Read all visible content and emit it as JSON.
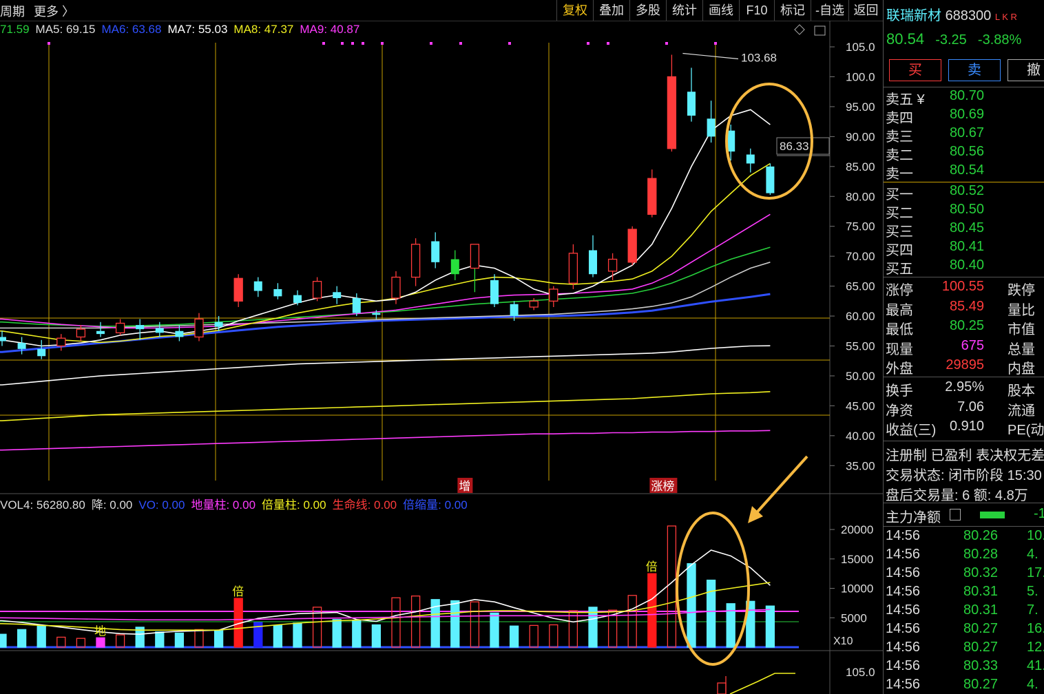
{
  "toolbar": {
    "period_label": "周期",
    "more_label": "更多 〉",
    "buttons": [
      "复权",
      "叠加",
      "多股",
      "统计",
      "画线",
      "F10",
      "标记",
      "-自选",
      "返回"
    ],
    "active_index": 0
  },
  "ma_legend": [
    {
      "text": "71.59",
      "color": "#27d03c"
    },
    {
      "text": "MA5: 69.15",
      "color": "#dddddd"
    },
    {
      "text": "MA6: 63.68",
      "color": "#2f50ff"
    },
    {
      "text": "MA7: 55.03",
      "color": "#ffffff"
    },
    {
      "text": "MA8: 47.37",
      "color": "#f0f020"
    },
    {
      "text": "MA9: 40.87",
      "color": "#ff3bff"
    }
  ],
  "vol_legend": [
    {
      "text": "VOL4: 56280.80",
      "color": "#dddddd"
    },
    {
      "text": "降: 0.00",
      "color": "#dddddd"
    },
    {
      "text": "VO: 0.00",
      "color": "#2f50ff"
    },
    {
      "text": "地量柱: 0.00",
      "color": "#ff3bff"
    },
    {
      "text": "倍量柱: 0.00",
      "color": "#f0f020"
    },
    {
      "text": "生命线: 0.00",
      "color": "#ff3b3b"
    },
    {
      "text": "倍缩量: 0.00",
      "color": "#2f50ff"
    }
  ],
  "chart_data": {
    "type": "candlestick",
    "price_axis_ticks": [
      105,
      100,
      95,
      90,
      85,
      80,
      75,
      70,
      65,
      60,
      55,
      50,
      45,
      40,
      35
    ],
    "price_axis_labels": [
      "105.0",
      "100.0",
      "95.00",
      "90.00",
      "85.00",
      "80.00",
      "75.00",
      "70.00",
      "65.00",
      "60.00",
      "55.00",
      "50.00",
      "45.00",
      "40.00",
      "35.00"
    ],
    "ylim": [
      32.5,
      106.5
    ],
    "vol_axis_labels": [
      "20000",
      "15000",
      "10000",
      "5000"
    ],
    "vol_axis_ticks": [
      20000,
      15000,
      10000,
      5000
    ],
    "vol_ylim": [
      0,
      22000
    ],
    "vol_multiplier_label": "X10",
    "lower_axis_label": "105.0",
    "high_annotation": "103.68",
    "cross_price_label": "86.33",
    "event_labels": [
      {
        "index": 24,
        "text": "增"
      },
      {
        "index": 34,
        "text": "涨榜"
      }
    ],
    "vol_marks": [
      {
        "index": 12,
        "text": "倍"
      },
      {
        "index": 33,
        "text": "倍"
      },
      {
        "index": 5,
        "text": "地"
      }
    ],
    "candles": [
      {
        "o": 56.5,
        "h": 57.5,
        "l": 55.0,
        "c": 55.8,
        "v": 2200
      },
      {
        "o": 55.5,
        "h": 56.5,
        "l": 53.6,
        "c": 54.5,
        "v": 3000
      },
      {
        "o": 54.5,
        "h": 56.0,
        "l": 52.8,
        "c": 53.3,
        "v": 3600
      },
      {
        "o": 55.0,
        "h": 57.0,
        "l": 54.2,
        "c": 56.3,
        "v": 1700
      },
      {
        "o": 56.5,
        "h": 58.5,
        "l": 55.8,
        "c": 57.8,
        "v": 1500
      },
      {
        "o": 57.5,
        "h": 59.0,
        "l": 56.5,
        "c": 57.0,
        "v": 1600
      },
      {
        "o": 57.2,
        "h": 59.5,
        "l": 56.8,
        "c": 58.8,
        "v": 2100
      },
      {
        "o": 58.5,
        "h": 59.5,
        "l": 56.0,
        "c": 57.8,
        "v": 3400
      },
      {
        "o": 58.0,
        "h": 59.0,
        "l": 56.5,
        "c": 57.2,
        "v": 2600
      },
      {
        "o": 57.5,
        "h": 58.5,
        "l": 55.8,
        "c": 56.5,
        "v": 2400
      },
      {
        "o": 56.5,
        "h": 60.5,
        "l": 55.8,
        "c": 59.5,
        "v": 3000
      },
      {
        "o": 59.0,
        "h": 60.0,
        "l": 57.5,
        "c": 58.2,
        "v": 2800
      },
      {
        "o": 62.5,
        "h": 67.0,
        "l": 61.5,
        "c": 66.3,
        "v": 8300
      },
      {
        "o": 65.8,
        "h": 66.5,
        "l": 63.2,
        "c": 64.2,
        "v": 4200
      },
      {
        "o": 64.5,
        "h": 65.5,
        "l": 62.8,
        "c": 63.3,
        "v": 3700
      },
      {
        "o": 63.5,
        "h": 64.3,
        "l": 61.8,
        "c": 62.2,
        "v": 4100
      },
      {
        "o": 63.0,
        "h": 66.5,
        "l": 62.5,
        "c": 65.8,
        "v": 6800
      },
      {
        "o": 64.0,
        "h": 65.0,
        "l": 62.0,
        "c": 63.0,
        "v": 4700
      },
      {
        "o": 63.0,
        "h": 63.8,
        "l": 60.0,
        "c": 60.5,
        "v": 4500
      },
      {
        "o": 60.5,
        "h": 61.0,
        "l": 59.5,
        "c": 60.2,
        "v": 3800
      },
      {
        "o": 63.0,
        "h": 67.5,
        "l": 62.0,
        "c": 66.5,
        "v": 8400
      },
      {
        "o": 66.5,
        "h": 73.0,
        "l": 65.0,
        "c": 72.0,
        "v": 8700
      },
      {
        "o": 72.5,
        "h": 74.0,
        "l": 68.0,
        "c": 69.0,
        "v": 8100
      },
      {
        "o": 69.5,
        "h": 71.0,
        "l": 66.0,
        "c": 67.0,
        "v": 7900
      },
      {
        "o": 68.0,
        "h": 72.0,
        "l": 64.0,
        "c": 72.0,
        "v": 7700
      },
      {
        "o": 66.0,
        "h": 67.0,
        "l": 61.5,
        "c": 62.0,
        "v": 5800
      },
      {
        "o": 62.0,
        "h": 62.5,
        "l": 59.2,
        "c": 60.0,
        "v": 3600
      },
      {
        "o": 61.5,
        "h": 63.0,
        "l": 61.0,
        "c": 62.5,
        "v": 3700
      },
      {
        "o": 62.5,
        "h": 65.0,
        "l": 61.5,
        "c": 64.5,
        "v": 3800
      },
      {
        "o": 65.5,
        "h": 72.0,
        "l": 64.5,
        "c": 70.5,
        "v": 6200
      },
      {
        "o": 71.0,
        "h": 73.5,
        "l": 66.5,
        "c": 67.0,
        "v": 6800
      },
      {
        "o": 67.5,
        "h": 70.5,
        "l": 66.0,
        "c": 69.5,
        "v": 6300
      },
      {
        "o": 69.0,
        "h": 75.0,
        "l": 68.5,
        "c": 74.5,
        "v": 8800
      },
      {
        "o": 77.0,
        "h": 84.5,
        "l": 76.5,
        "c": 83.0,
        "v": 12500
      },
      {
        "o": 88.0,
        "h": 103.68,
        "l": 87.5,
        "c": 100.0,
        "v": 20600
      },
      {
        "o": 97.5,
        "h": 101.5,
        "l": 92.5,
        "c": 93.5,
        "v": 14200
      },
      {
        "o": 93.0,
        "h": 96.0,
        "l": 89.0,
        "c": 90.0,
        "v": 11400
      },
      {
        "o": 91.0,
        "h": 92.0,
        "l": 86.0,
        "c": 87.5,
        "v": 7400
      },
      {
        "o": 87.0,
        "h": 88.0,
        "l": 84.0,
        "c": 85.5,
        "v": 7800
      },
      {
        "o": 85.0,
        "h": 85.5,
        "l": 80.25,
        "c": 80.54,
        "v": 7000
      }
    ],
    "series": [
      {
        "name": "MA5",
        "color": "#ffffff",
        "values": [
          56.0,
          55.5,
          55.0,
          55.2,
          55.5,
          56.0,
          56.8,
          57.2,
          57.5,
          57.0,
          57.5,
          58.0,
          59.2,
          60.2,
          61.2,
          62.2,
          63.0,
          63.5,
          63.0,
          62.5,
          62.8,
          64.0,
          66.0,
          67.5,
          68.5,
          68.0,
          66.5,
          64.5,
          63.5,
          63.8,
          65.0,
          66.8,
          68.5,
          72.0,
          78.0,
          85.0,
          91.0,
          93.5,
          94.5,
          92.0
        ]
      },
      {
        "name": "MA10",
        "color": "#f0f020",
        "values": [
          57.5,
          57.0,
          56.5,
          56.0,
          55.8,
          55.6,
          55.8,
          56.2,
          56.6,
          56.8,
          57.2,
          57.6,
          58.3,
          59.0,
          59.7,
          60.5,
          61.1,
          61.7,
          62.2,
          62.5,
          63.0,
          63.8,
          64.6,
          65.3,
          66.0,
          66.5,
          66.4,
          66.0,
          65.5,
          65.3,
          65.5,
          65.8,
          66.2,
          67.5,
          70.0,
          73.5,
          77.5,
          80.5,
          83.5,
          85.5
        ]
      },
      {
        "name": "MA20",
        "color": "#ff3bff",
        "values": [
          59.5,
          59.2,
          58.9,
          58.6,
          58.4,
          58.2,
          58.0,
          58.0,
          58.0,
          58.1,
          58.2,
          58.3,
          58.6,
          58.9,
          59.2,
          59.5,
          59.8,
          60.1,
          60.4,
          60.7,
          61.0,
          61.5,
          62.0,
          62.5,
          63.0,
          63.3,
          63.5,
          63.6,
          63.7,
          63.8,
          64.0,
          64.2,
          64.5,
          65.5,
          67.0,
          69.0,
          71.0,
          73.0,
          75.0,
          77.0
        ]
      },
      {
        "name": "MA30",
        "color": "#27d03c",
        "values": [
          59.0,
          58.8,
          58.6,
          58.5,
          58.4,
          58.3,
          58.3,
          58.4,
          58.5,
          58.6,
          58.8,
          59.0,
          59.2,
          59.4,
          59.6,
          59.8,
          60.0,
          60.2,
          60.4,
          60.6,
          60.8,
          61.1,
          61.4,
          61.7,
          62.0,
          62.2,
          62.4,
          62.6,
          62.8,
          63.0,
          63.2,
          63.5,
          63.8,
          64.5,
          65.5,
          66.8,
          68.2,
          69.5,
          70.5,
          71.5
        ]
      },
      {
        "name": "MA60",
        "color": "#cccccc",
        "values": [
          58.0,
          58.0,
          58.0,
          58.0,
          58.0,
          58.0,
          58.1,
          58.2,
          58.3,
          58.4,
          58.5,
          58.6,
          58.7,
          58.8,
          58.9,
          59.0,
          59.1,
          59.2,
          59.3,
          59.4,
          59.5,
          59.6,
          59.7,
          59.8,
          59.9,
          60.0,
          60.1,
          60.2,
          60.3,
          60.5,
          60.7,
          60.9,
          61.2,
          61.6,
          62.2,
          63.2,
          64.8,
          66.5,
          68.0,
          69.0
        ]
      },
      {
        "name": "MA6",
        "color": "#2f50ff",
        "values": [
          54.0,
          54.3,
          54.6,
          54.9,
          55.2,
          55.5,
          55.8,
          56.1,
          56.4,
          56.7,
          57.0,
          57.3,
          57.6,
          57.9,
          58.2,
          58.4,
          58.6,
          58.8,
          59.0,
          59.2,
          59.3,
          59.4,
          59.5,
          59.6,
          59.7,
          59.8,
          59.9,
          60.0,
          60.0,
          60.1,
          60.2,
          60.4,
          60.6,
          60.9,
          61.4,
          61.9,
          62.4,
          62.8,
          63.2,
          63.68
        ]
      },
      {
        "name": "MA7",
        "color": "#ffffff",
        "values": [
          48.5,
          48.8,
          49.1,
          49.4,
          49.7,
          50.0,
          50.2,
          50.4,
          50.6,
          50.8,
          51.0,
          51.2,
          51.4,
          51.6,
          51.8,
          52.0,
          52.1,
          52.2,
          52.3,
          52.4,
          52.5,
          52.6,
          52.7,
          52.8,
          52.9,
          53.0,
          53.1,
          53.2,
          53.3,
          53.4,
          53.5,
          53.6,
          53.7,
          53.8,
          54.0,
          54.3,
          54.6,
          54.8,
          55.0,
          55.03
        ]
      },
      {
        "name": "MA8",
        "color": "#f0f020",
        "values": [
          42.5,
          42.7,
          42.9,
          43.1,
          43.3,
          43.5,
          43.6,
          43.7,
          43.8,
          43.9,
          44.0,
          44.1,
          44.2,
          44.3,
          44.4,
          44.5,
          44.6,
          44.7,
          44.8,
          44.9,
          45.0,
          45.1,
          45.2,
          45.3,
          45.4,
          45.5,
          45.6,
          45.7,
          45.8,
          45.9,
          46.0,
          46.1,
          46.2,
          46.4,
          46.6,
          46.8,
          47.0,
          47.1,
          47.2,
          47.37
        ]
      },
      {
        "name": "MA9",
        "color": "#ff3bff",
        "values": [
          37.6,
          37.7,
          37.8,
          37.9,
          38.0,
          38.1,
          38.2,
          38.3,
          38.4,
          38.5,
          38.6,
          38.7,
          38.8,
          38.9,
          39.0,
          39.1,
          39.2,
          39.3,
          39.4,
          39.5,
          39.6,
          39.7,
          39.8,
          39.9,
          40.0,
          40.1,
          40.2,
          40.3,
          40.3,
          40.4,
          40.4,
          40.5,
          40.5,
          40.6,
          40.6,
          40.7,
          40.7,
          40.8,
          40.8,
          40.87
        ]
      }
    ],
    "vol_series": [
      {
        "name": "VMA5",
        "color": "#ffffff",
        "values": [
          4500,
          4200,
          3800,
          3400,
          3000,
          2600,
          2300,
          2200,
          2500,
          2700,
          2800,
          2900,
          4000,
          4900,
          5300,
          5700,
          5800,
          5900,
          4700,
          4400,
          5400,
          6000,
          6900,
          7400,
          8100,
          7700,
          6700,
          5800,
          4900,
          4300,
          4800,
          5500,
          6500,
          8200,
          11000,
          14000,
          16500,
          15500,
          13500,
          10500
        ]
      },
      {
        "name": "VMA10",
        "color": "#f0f020",
        "values": [
          4000,
          3900,
          3700,
          3600,
          3400,
          3200,
          3000,
          2900,
          2900,
          2900,
          2900,
          2900,
          3200,
          3500,
          3800,
          4100,
          4300,
          4500,
          4600,
          4800,
          5000,
          5300,
          5600,
          5800,
          6100,
          6200,
          6200,
          6100,
          6000,
          5900,
          5900,
          6000,
          6200,
          6800,
          7600,
          8500,
          9500,
          10000,
          10500,
          11000
        ]
      },
      {
        "name": "VMA20",
        "color": "#ff3bff",
        "values": [
          5000,
          4950,
          4900,
          4850,
          4800,
          4750,
          4700,
          4650,
          4650,
          4650,
          4650,
          4650,
          4700,
          4750,
          4800,
          4850,
          4900,
          4950,
          5000,
          5050,
          5100,
          5150,
          5200,
          5250,
          5300,
          5350,
          5350,
          5350,
          5350,
          5350,
          5350,
          5400,
          5450,
          5550,
          5700,
          5900,
          6100,
          6200,
          6300,
          6400
        ]
      }
    ]
  },
  "panel": {
    "name": "联瑞新材",
    "code": "688300",
    "flags": "L K R",
    "price": "80.54",
    "change": "-3.25",
    "change_pct": "-3.88%",
    "buy_label": "买",
    "sell_label": "卖",
    "cancel_label": "撤",
    "asks": [
      {
        "label": "卖五 ¥",
        "price": "80.70"
      },
      {
        "label": "卖四",
        "price": "80.69"
      },
      {
        "label": "卖三",
        "price": "80.67"
      },
      {
        "label": "卖二",
        "price": "80.56"
      },
      {
        "label": "卖一",
        "price": "80.54"
      }
    ],
    "bids": [
      {
        "label": "买一",
        "price": "80.52"
      },
      {
        "label": "买二",
        "price": "80.50"
      },
      {
        "label": "买三",
        "price": "80.45"
      },
      {
        "label": "买四",
        "price": "80.41"
      },
      {
        "label": "买五",
        "price": "80.40"
      }
    ],
    "stats": [
      {
        "k": "涨停",
        "v": "100.55",
        "vc": "r",
        "k2": "跌停"
      },
      {
        "k": "最高",
        "v": "85.49",
        "vc": "r",
        "k2": "量比"
      },
      {
        "k": "最低",
        "v": "80.25",
        "vc": "g",
        "k2": "市值"
      },
      {
        "k": "现量",
        "v": "675",
        "vc": "m",
        "k2": "总量"
      },
      {
        "k": "外盘",
        "v": "29895",
        "vc": "r",
        "k2": "内盘"
      }
    ],
    "stats2": [
      {
        "k": "换手",
        "v": "2.95%",
        "k2": "股本"
      },
      {
        "k": "净资",
        "v": "7.06",
        "k2": "流通"
      },
      {
        "k": "收益(三)",
        "v": "0.910",
        "k2": "PE(动)"
      }
    ],
    "reg_line": "注册制 已盈利 表决权无差",
    "trade_state": "交易状态: 闭市阶段 15:30",
    "after_hours": "盘后交易量: 6  额: 4.8万",
    "main_flow_label": "主力净额",
    "main_flow_value": "-1",
    "ticks": [
      {
        "t": "14:56",
        "p": "80.26",
        "v": "10."
      },
      {
        "t": "14:56",
        "p": "80.28",
        "v": "4."
      },
      {
        "t": "14:56",
        "p": "80.32",
        "v": "17."
      },
      {
        "t": "14:56",
        "p": "80.31",
        "v": "5."
      },
      {
        "t": "14:56",
        "p": "80.31",
        "v": "7."
      },
      {
        "t": "14:56",
        "p": "80.27",
        "v": "16."
      },
      {
        "t": "14:56",
        "p": "80.27",
        "v": "12."
      },
      {
        "t": "14:56",
        "p": "80.33",
        "v": "41."
      },
      {
        "t": "14:56",
        "p": "80.27",
        "v": "4."
      }
    ]
  }
}
